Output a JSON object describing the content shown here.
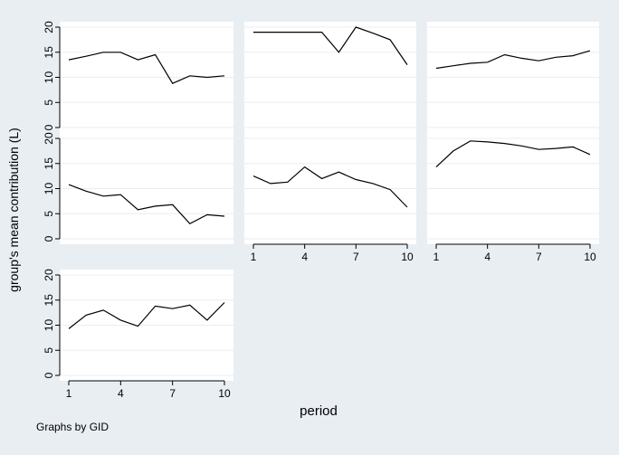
{
  "figure": {
    "ylabel": "group's mean contribution (L)",
    "xlabel": "period",
    "note": "Graphs by GID"
  },
  "chart_data": [
    {
      "type": "line",
      "panel": 1,
      "x": [
        1,
        2,
        3,
        4,
        5,
        6,
        7,
        8,
        9,
        10
      ],
      "values": [
        13.5,
        14.2,
        15.0,
        15.0,
        13.5,
        14.5,
        8.8,
        10.3,
        10.0,
        10.3
      ],
      "xlim": [
        1,
        10
      ],
      "ylim": [
        0,
        20
      ],
      "yticks": [
        0,
        5,
        10,
        15,
        20
      ],
      "xticks": [
        1,
        4,
        7,
        10
      ],
      "show_xticks": false
    },
    {
      "type": "line",
      "panel": 2,
      "x": [
        1,
        2,
        3,
        4,
        5,
        6,
        7,
        8,
        9,
        10
      ],
      "values": [
        19.0,
        19.0,
        19.0,
        19.0,
        19.0,
        15.0,
        20.0,
        18.8,
        17.5,
        12.5
      ],
      "xlim": [
        1,
        10
      ],
      "ylim": [
        0,
        20
      ],
      "yticks": [
        0,
        5,
        10,
        15,
        20
      ],
      "xticks": [
        1,
        4,
        7,
        10
      ],
      "show_xticks": false
    },
    {
      "type": "line",
      "panel": 3,
      "x": [
        1,
        2,
        3,
        4,
        5,
        6,
        7,
        8,
        9,
        10
      ],
      "values": [
        11.8,
        12.3,
        12.8,
        13.0,
        14.5,
        13.8,
        13.3,
        14.0,
        14.3,
        15.3
      ],
      "xlim": [
        1,
        10
      ],
      "ylim": [
        0,
        20
      ],
      "yticks": [
        0,
        5,
        10,
        15,
        20
      ],
      "xticks": [
        1,
        4,
        7,
        10
      ],
      "show_xticks": false
    },
    {
      "type": "line",
      "panel": 4,
      "x": [
        1,
        2,
        3,
        4,
        5,
        6,
        7,
        8,
        9,
        10
      ],
      "values": [
        10.8,
        9.5,
        8.5,
        8.8,
        5.8,
        6.5,
        6.8,
        3.0,
        4.8,
        4.5
      ],
      "xlim": [
        1,
        10
      ],
      "ylim": [
        0,
        20
      ],
      "yticks": [
        0,
        5,
        10,
        15,
        20
      ],
      "xticks": [
        1,
        4,
        7,
        10
      ],
      "show_xticks": false
    },
    {
      "type": "line",
      "panel": 5,
      "x": [
        1,
        2,
        3,
        4,
        5,
        6,
        7,
        8,
        9,
        10
      ],
      "values": [
        12.5,
        11.0,
        11.3,
        14.3,
        12.0,
        13.3,
        11.8,
        11.0,
        9.8,
        6.3
      ],
      "xlim": [
        1,
        10
      ],
      "ylim": [
        0,
        20
      ],
      "yticks": [
        0,
        5,
        10,
        15,
        20
      ],
      "xticks": [
        1,
        4,
        7,
        10
      ],
      "show_xticks": true
    },
    {
      "type": "line",
      "panel": 6,
      "x": [
        1,
        2,
        3,
        4,
        5,
        6,
        7,
        8,
        9,
        10
      ],
      "values": [
        14.3,
        17.5,
        19.5,
        19.3,
        19.0,
        18.5,
        17.8,
        18.0,
        18.3,
        16.8
      ],
      "xlim": [
        1,
        10
      ],
      "ylim": [
        0,
        20
      ],
      "yticks": [
        0,
        5,
        10,
        15,
        20
      ],
      "xticks": [
        1,
        4,
        7,
        10
      ],
      "show_xticks": true
    },
    {
      "type": "line",
      "panel": 7,
      "x": [
        1,
        2,
        3,
        4,
        5,
        6,
        7,
        8,
        9,
        10
      ],
      "values": [
        9.3,
        12.0,
        13.0,
        11.0,
        9.8,
        13.8,
        13.3,
        14.0,
        11.0,
        14.5
      ],
      "xlim": [
        1,
        10
      ],
      "ylim": [
        0,
        20
      ],
      "yticks": [
        0,
        5,
        10,
        15,
        20
      ],
      "xticks": [
        1,
        4,
        7,
        10
      ],
      "show_xticks": true
    }
  ]
}
